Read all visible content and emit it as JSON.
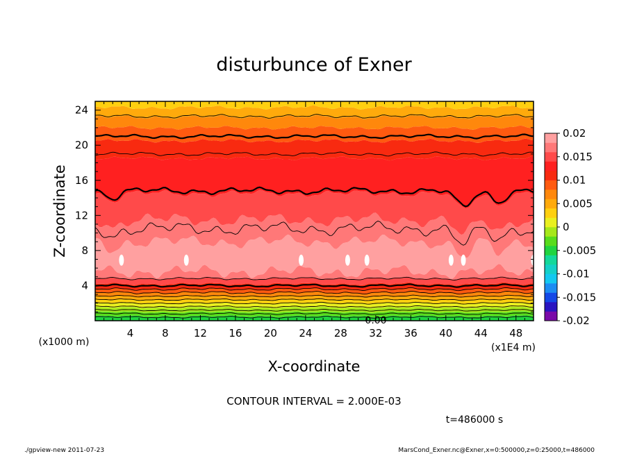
{
  "chart_data": {
    "type": "heatmap",
    "title": "disturbunce of Exner",
    "xlabel": "X-coordinate",
    "ylabel": "Z-coordinate",
    "x_unit": "(x1E4 m)",
    "y_unit": "(x1000 m)",
    "x_ticks": [
      "4",
      "8",
      "12",
      "16",
      "20",
      "24",
      "28",
      "32",
      "36",
      "40",
      "44",
      "48"
    ],
    "y_ticks": [
      "4",
      "8",
      "12",
      "16",
      "20",
      "24"
    ],
    "xlim": [
      0,
      50
    ],
    "ylim": [
      0,
      25
    ],
    "colorbar_ticks": [
      "0.02",
      "0.015",
      "0.01",
      "0.005",
      "0",
      "-0.005",
      "-0.01",
      "-0.015",
      "-0.02"
    ],
    "colorbar_range": [
      -0.02,
      0.02
    ],
    "colorbar_colors": [
      "#7a0aa8",
      "#2a14c0",
      "#1448e6",
      "#1c8cf2",
      "#14c8f0",
      "#14d0c8",
      "#14d89a",
      "#20d440",
      "#58dc1c",
      "#a6e81a",
      "#eaf020",
      "#ffd010",
      "#ffaa0c",
      "#ff880c",
      "#ff5a10",
      "#f82a10",
      "#ff2020",
      "#ff4a4a",
      "#ff7878",
      "#ffa0a0"
    ],
    "contour_label": "0.00",
    "contour_interval_text": "CONTOUR INTERVAL = 2.000E-03",
    "time_text": "t=486000 s",
    "footer_left": "./gpview-new   2011-07-23",
    "footer_right": "MarsCond_Exner.nc@Exner,x=0:500000,z=0:25000,t=486000",
    "bands": [
      {
        "z": [
          0,
          0.5
        ],
        "color": "#20d440"
      },
      {
        "z": [
          0.5,
          1.0
        ],
        "color": "#58dc1c"
      },
      {
        "z": [
          1.0,
          1.5
        ],
        "color": "#a6e81a"
      },
      {
        "z": [
          1.5,
          2.0
        ],
        "color": "#eaf020"
      },
      {
        "z": [
          2.0,
          2.4
        ],
        "color": "#ffd010"
      },
      {
        "z": [
          2.4,
          2.8
        ],
        "color": "#ffaa0c"
      },
      {
        "z": [
          2.8,
          3.2
        ],
        "color": "#ff880c"
      },
      {
        "z": [
          3.2,
          3.6
        ],
        "color": "#ff5a10"
      },
      {
        "z": [
          3.6,
          4.2
        ],
        "color": "#f82a10"
      },
      {
        "z": [
          4.2,
          4.8
        ],
        "color": "#ff4a4a"
      },
      {
        "z": [
          4.8,
          5.6
        ],
        "color": "#ff7878"
      },
      {
        "z": [
          5.6,
          9.0
        ],
        "color": "#ffa0a0"
      },
      {
        "z": [
          9.0,
          11.5
        ],
        "color": "#ff7878"
      },
      {
        "z": [
          11.5,
          14.5
        ],
        "color": "#ff4a4a"
      },
      {
        "z": [
          14.5,
          18.5
        ],
        "color": "#ff2020"
      },
      {
        "z": [
          18.5,
          20.5
        ],
        "color": "#f82a10"
      },
      {
        "z": [
          20.5,
          22.0
        ],
        "color": "#ff5a10"
      },
      {
        "z": [
          22.0,
          23.2
        ],
        "color": "#ff880c"
      },
      {
        "z": [
          23.2,
          24.3
        ],
        "color": "#ffaa0c"
      },
      {
        "z": [
          24.3,
          25.0
        ],
        "color": "#ffd010"
      }
    ],
    "contours": [
      0.4,
      0.8,
      1.2,
      1.6,
      2.0,
      2.4,
      2.8,
      3.2,
      3.6,
      4.0,
      4.8,
      10.5,
      14.8,
      19.0,
      21.0,
      23.3
    ],
    "bold_contours": [
      4.0,
      14.8,
      21.0
    ]
  }
}
